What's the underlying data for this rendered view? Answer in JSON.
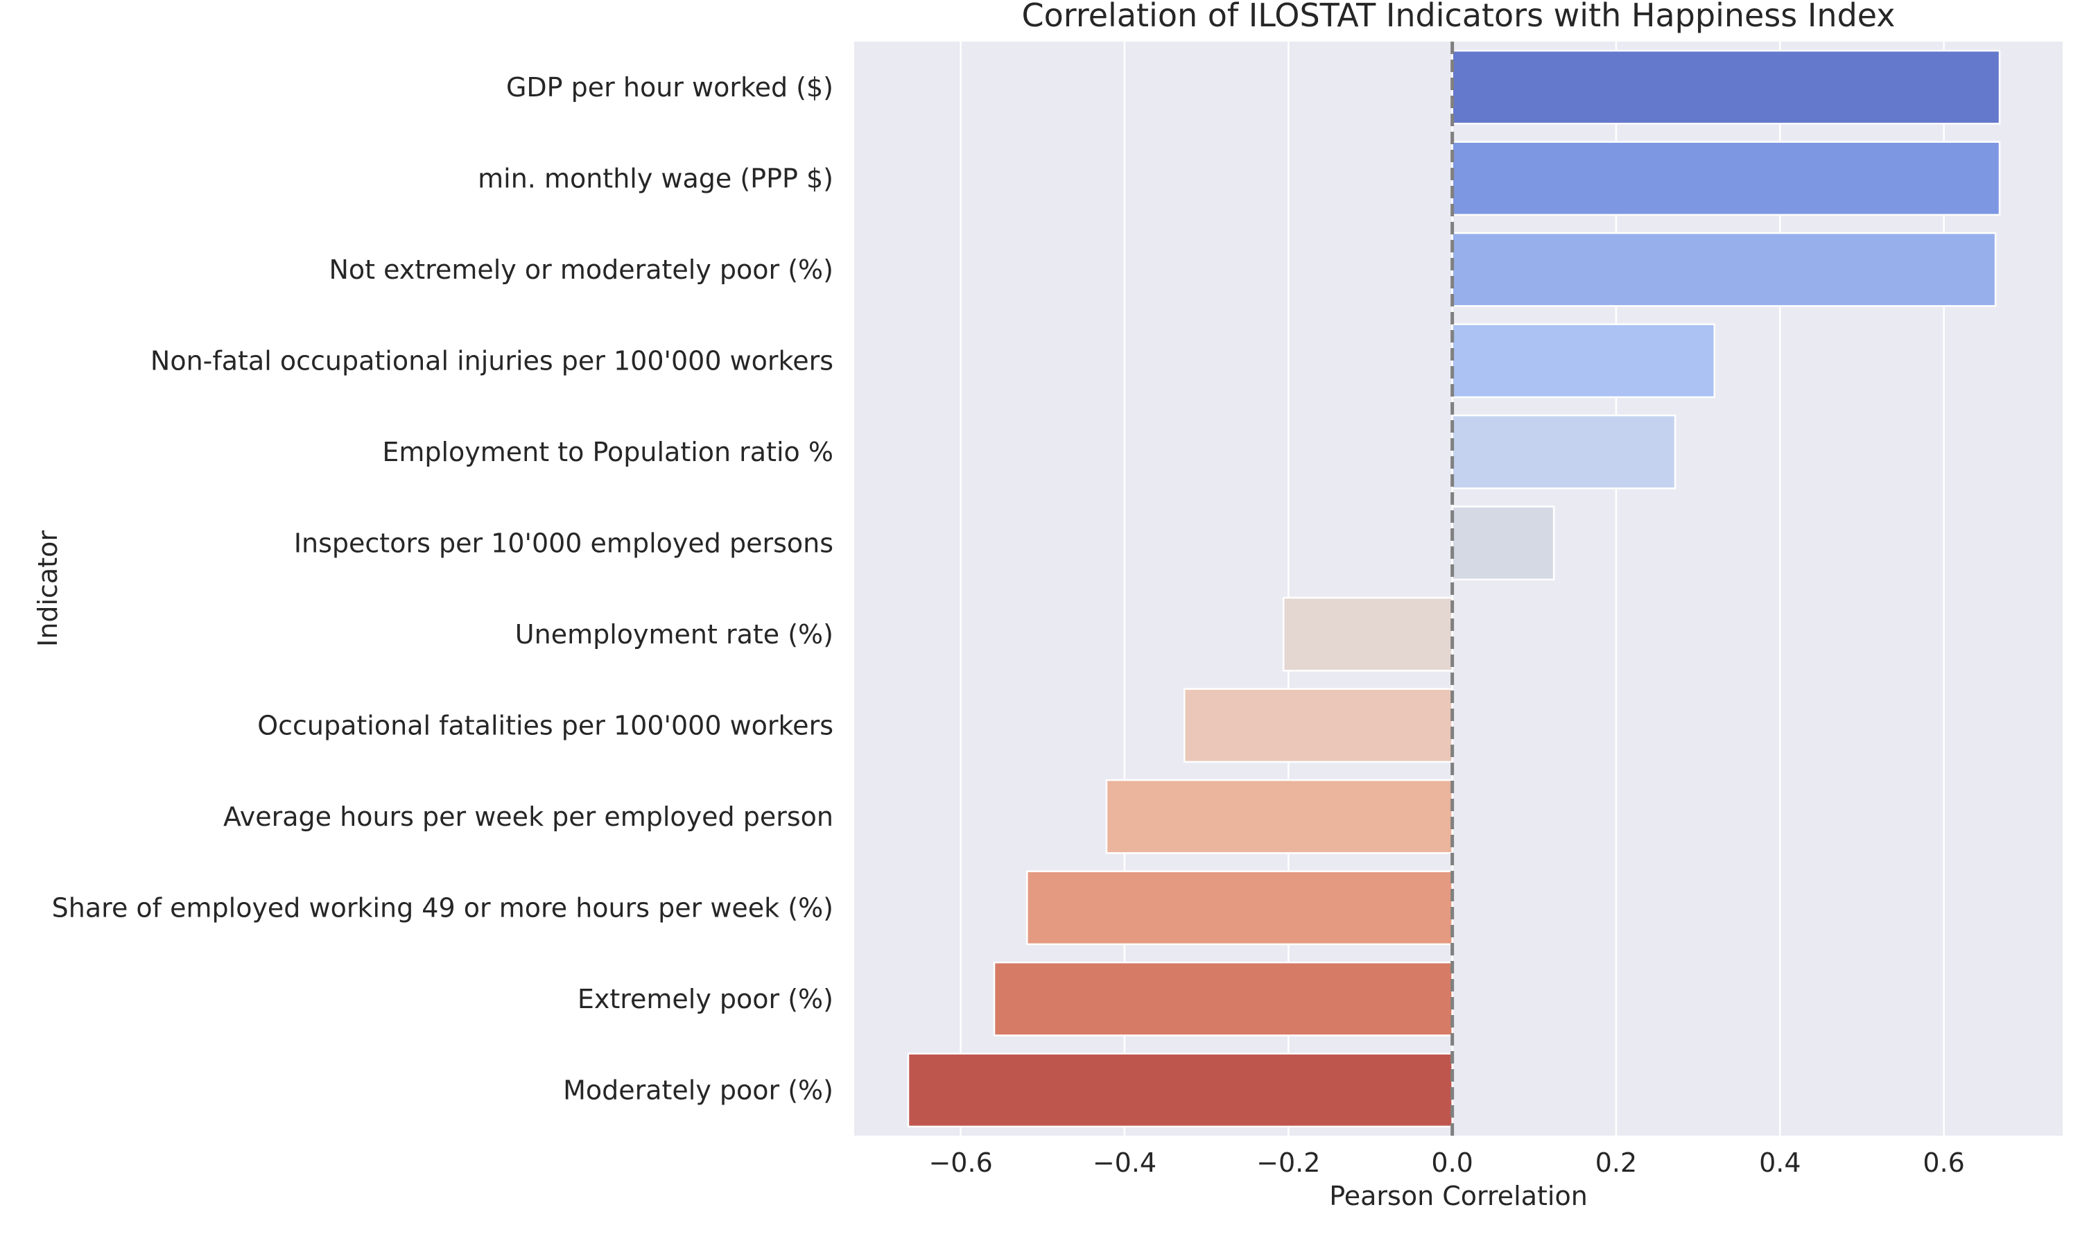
{
  "chart_data": {
    "type": "bar",
    "orientation": "horizontal",
    "title": "Correlation of ILOSTAT Indicators with Happiness Index",
    "xlabel": "Pearson Correlation",
    "ylabel": "Indicator",
    "xlim": [
      -0.73,
      0.745
    ],
    "xticks": [
      -0.6,
      -0.4,
      -0.2,
      0.0,
      0.2,
      0.4,
      0.6
    ],
    "xtick_labels": [
      "−0.6",
      "−0.4",
      "−0.2",
      "0.0",
      "0.2",
      "0.4",
      "0.6"
    ],
    "grid": true,
    "reference_line": {
      "x": 0.0,
      "style": "dashed",
      "color": "#808080"
    },
    "categories": [
      "GDP per hour worked ($)",
      "min. monthly wage (PPP $)",
      "Not extremely or moderately poor (%)",
      "Non-fatal occupational injuries per 100'000 workers",
      "Employment to Population ratio %",
      "Inspectors per 10'000 employed persons",
      "Unemployment rate (%)",
      "Occupational fatalities per 100'000 workers",
      "Average hours per week per employed person",
      "Share of employed working 49 or more hours per week (%)",
      "Extremely poor (%)",
      "Moderately poor (%)"
    ],
    "values": [
      0.668,
      0.668,
      0.663,
      0.32,
      0.272,
      0.124,
      -0.206,
      -0.327,
      -0.422,
      -0.519,
      -0.559,
      -0.664
    ],
    "colors": [
      "#6479cc",
      "#7e97e2",
      "#97b0ec",
      "#abc2f3",
      "#c4d2ef",
      "#d4d9e4",
      "#e4d7d2",
      "#eac7b8",
      "#ebb49c",
      "#e49a81",
      "#d57b66",
      "#be564e"
    ]
  }
}
